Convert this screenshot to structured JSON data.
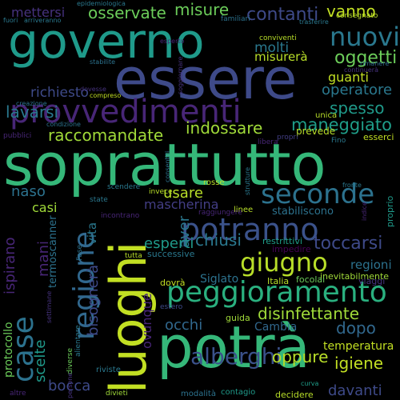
{
  "palette": {
    "background": "#000000",
    "yellow": "#c8e020",
    "lime": "#7fd34e",
    "green": "#3cbb75",
    "teal": "#1f9a8a",
    "blue_teal": "#25848e",
    "steel": "#2d708e",
    "indigo": "#39568c",
    "slate": "#3f4788",
    "purple": "#482677",
    "dark_purple": "#440154"
  },
  "words": [
    {
      "text": "soprattutto",
      "color": "#35b779"
    },
    {
      "text": "governo",
      "color": "#1f9a8a"
    },
    {
      "text": "essere",
      "color": "#3e4a89"
    },
    {
      "text": "luoghi",
      "color": "#c2df23"
    },
    {
      "text": "potrà",
      "color": "#35b779"
    },
    {
      "text": "provvedimenti",
      "color": "#482677"
    },
    {
      "text": "peggioramento",
      "color": "#2ab07f"
    },
    {
      "text": "potranno",
      "color": "#3b528b"
    },
    {
      "text": "seconde",
      "color": "#2c728e"
    },
    {
      "text": "regione",
      "color": "#31688e"
    },
    {
      "text": "case",
      "color": "#2c728e"
    },
    {
      "text": "giugno",
      "color": "#b8de29"
    },
    {
      "text": "nuovi",
      "color": "#2a788e"
    },
    {
      "text": "alberghi",
      "color": "#3b528b"
    },
    {
      "text": "disinfettante",
      "color": "#a0da39"
    },
    {
      "text": "oggetti",
      "color": "#6ccd5a"
    },
    {
      "text": "contanti",
      "color": "#3e4a89"
    },
    {
      "text": "raccomandate",
      "color": "#a0da39"
    },
    {
      "text": "maneggiato",
      "color": "#1f9e89"
    },
    {
      "text": "indossare",
      "color": "#a0da39"
    },
    {
      "text": "lavarsi",
      "color": "#2a788e"
    },
    {
      "text": "osservate",
      "color": "#6ccd5a"
    },
    {
      "text": "misure",
      "color": "#6ccd5a"
    },
    {
      "text": "mettersi",
      "color": "#46327e"
    },
    {
      "text": "vanno",
      "color": "#c2df23"
    },
    {
      "text": "spesso",
      "color": "#1f9a8a"
    },
    {
      "text": "richiesto",
      "color": "#3e4a89"
    },
    {
      "text": "molti",
      "color": "#2a788e"
    },
    {
      "text": "misurerà",
      "color": "#b8de29"
    },
    {
      "text": "guanti",
      "color": "#c2df23"
    },
    {
      "text": "operatore",
      "color": "#2a788e"
    },
    {
      "text": "toccarsi",
      "color": "#3e4a89"
    },
    {
      "text": "usare",
      "color": "#b8de29"
    },
    {
      "text": "mascherina",
      "color": "#433e85"
    },
    {
      "text": "esperti",
      "color": "#1f9a8a"
    },
    {
      "text": "chiusi",
      "color": "#2a788e"
    },
    {
      "text": "naso",
      "color": "#2c728e"
    },
    {
      "text": "casi",
      "color": "#a0da39"
    },
    {
      "text": "mani",
      "color": "#482677"
    },
    {
      "text": "aver",
      "color": "#2a788e"
    },
    {
      "text": "vita",
      "color": "#2a788e"
    },
    {
      "text": "ispirano",
      "color": "#482677"
    },
    {
      "text": "scelte",
      "color": "#1f9a8a"
    },
    {
      "text": "bocca",
      "color": "#3e4a89"
    },
    {
      "text": "bisognerà",
      "color": "#3e4a89"
    },
    {
      "text": "occhi",
      "color": "#31688e"
    },
    {
      "text": "dopo",
      "color": "#31688e"
    },
    {
      "text": "igiene",
      "color": "#c2df23"
    },
    {
      "text": "oppure",
      "color": "#b8de29"
    },
    {
      "text": "davanti",
      "color": "#3e4a89"
    },
    {
      "text": "regioni",
      "color": "#2c728e"
    },
    {
      "text": "temperatura",
      "color": "#c2df23"
    },
    {
      "text": "Cambia",
      "color": "#31688e"
    },
    {
      "text": "Siglato",
      "color": "#2c728e"
    },
    {
      "text": "ovunque",
      "color": "#482677"
    },
    {
      "text": "termoscanner",
      "color": "#2c728e"
    },
    {
      "text": "protocollo",
      "color": "#6ccd5a"
    },
    {
      "text": "stabiliscono",
      "color": "#2c728e"
    },
    {
      "text": "successive",
      "color": "#2a788e"
    },
    {
      "text": "restrittivi",
      "color": "#1f9e89"
    },
    {
      "text": "impedire",
      "color": "#440154"
    },
    {
      "text": "inevitabilmente",
      "color": "#a0da39"
    },
    {
      "text": "focolai",
      "color": "#6ccd5a"
    },
    {
      "text": "Italia",
      "color": "#b8de29"
    },
    {
      "text": "dovrà",
      "color": "#c2df23"
    },
    {
      "text": "guida",
      "color": "#a0da39"
    },
    {
      "text": "viaggi",
      "color": "#46327e"
    },
    {
      "text": "prevede",
      "color": "#b8de29"
    },
    {
      "text": "esserci",
      "color": "#c2df23"
    },
    {
      "text": "unica",
      "color": "#b8de29"
    },
    {
      "text": "libera",
      "color": "#482677"
    },
    {
      "text": "Fino",
      "color": "#2a788e"
    },
    {
      "text": "propri",
      "color": "#433e85"
    },
    {
      "text": "rosse",
      "color": "#b8de29"
    },
    {
      "text": "linee",
      "color": "#b8de29"
    },
    {
      "text": "invece",
      "color": "#b8de29"
    },
    {
      "text": "scendere",
      "color": "#2a788e"
    },
    {
      "text": "state",
      "color": "#2a788e"
    },
    {
      "text": "raggiungere",
      "color": "#482677"
    },
    {
      "text": "incontrano",
      "color": "#482677"
    },
    {
      "text": "tutta",
      "color": "#b8de29"
    },
    {
      "text": "Fase",
      "color": "#2c728e"
    },
    {
      "text": "riviste",
      "color": "#2a788e"
    },
    {
      "text": "diverse",
      "color": "#6ccd5a"
    },
    {
      "text": "alientare",
      "color": "#2a788e"
    },
    {
      "text": "estero",
      "color": "#3e4a89"
    },
    {
      "text": "contagio",
      "color": "#1f9a8a"
    },
    {
      "text": "decidere",
      "color": "#b8de29"
    },
    {
      "text": "divieti",
      "color": "#a0da39"
    },
    {
      "text": "modalità",
      "color": "#2c728e"
    },
    {
      "text": "altre",
      "color": "#482677"
    },
    {
      "text": "persone",
      "color": "#46327e"
    },
    {
      "text": "curva",
      "color": "#1f9e89"
    },
    {
      "text": "epidemiologica",
      "color": "#2a788e"
    },
    {
      "text": "familiari",
      "color": "#2c728e"
    },
    {
      "text": "consegnato",
      "color": "#b8de29"
    },
    {
      "text": "trasferire",
      "color": "#2a788e"
    },
    {
      "text": "fuori",
      "color": "#2a788e"
    },
    {
      "text": "arriveranno",
      "color": "#2a788e"
    },
    {
      "text": "conviventi",
      "color": "#b8de29"
    },
    {
      "text": "stabilite",
      "color": "#2c728e"
    },
    {
      "text": "rimanere",
      "color": "#31688e"
    },
    {
      "text": "continuerà",
      "color": "#46327e"
    },
    {
      "text": "creazione",
      "color": "#2c728e"
    },
    {
      "text": "dovesse",
      "color": "#46327e"
    },
    {
      "text": "compreso",
      "color": "#c2df23"
    },
    {
      "text": "soggiornare",
      "color": "#46327e"
    },
    {
      "text": "condizione",
      "color": "#2c728e"
    },
    {
      "text": "pubblici",
      "color": "#482677"
    },
    {
      "text": "consentiti",
      "color": "#2c728e"
    },
    {
      "text": "strutture",
      "color": "#2a788e"
    },
    {
      "text": "fronte",
      "color": "#2a788e"
    },
    {
      "text": "indice",
      "color": "#482677"
    },
    {
      "text": "proprio",
      "color": "#1f9a8a"
    },
    {
      "text": "settimane",
      "color": "#46327e"
    },
    {
      "text": "esperto",
      "color": "#482677"
    }
  ]
}
